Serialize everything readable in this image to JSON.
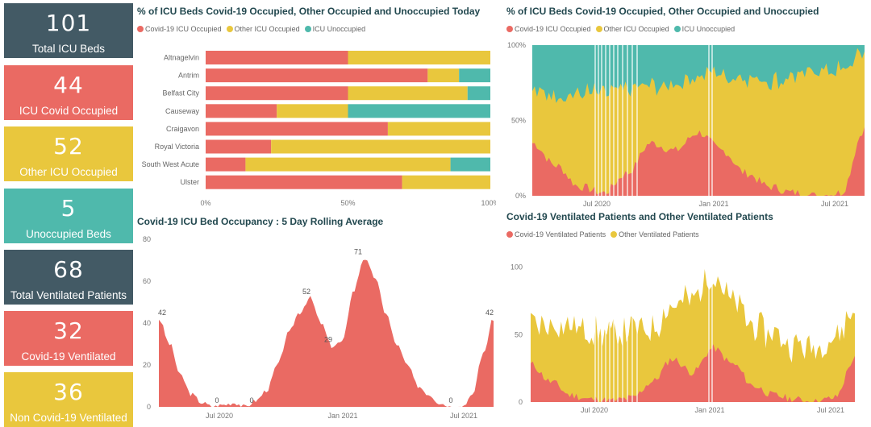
{
  "colors": {
    "covid": "#ea6a63",
    "other": "#e9c73d",
    "unocc": "#4fb9ac",
    "dark": "#435a65"
  },
  "cards": [
    {
      "value": "101",
      "label": "Total ICU Beds",
      "color": "#435a65"
    },
    {
      "value": "44",
      "label": "ICU Covid Occupied",
      "color": "#ea6a63"
    },
    {
      "value": "52",
      "label": "Other ICU Occupied",
      "color": "#e9c73d"
    },
    {
      "value": "5",
      "label": "Unoccupied Beds",
      "color": "#4fb9ac"
    },
    {
      "value": "68",
      "label": "Total Ventilated Patients",
      "color": "#435a65"
    },
    {
      "value": "32",
      "label": "Covid-19 Ventilated",
      "color": "#ea6a63"
    },
    {
      "value": "36",
      "label": "Non Covid-19 Ventilated",
      "color": "#e9c73d"
    }
  ],
  "chart_data": [
    {
      "type": "bar",
      "orientation": "horizontal",
      "stacked": "100%",
      "title": "% of ICU Beds Covid-19 Occupied, Other Occupied and Unoccupied Today",
      "categories": [
        "Altnagelvin",
        "Antrim",
        "Belfast City",
        "Causeway",
        "Craigavon",
        "Royal Victoria",
        "South West Acute",
        "Ulster"
      ],
      "series": [
        {
          "name": "Covid-19 ICU Occupied",
          "values": [
            50,
            78,
            50,
            25,
            64,
            23,
            14,
            69
          ]
        },
        {
          "name": "Other ICU Occupied",
          "values": [
            50,
            11,
            42,
            25,
            36,
            77,
            72,
            31
          ]
        },
        {
          "name": "ICU Unoccupied",
          "values": [
            0,
            11,
            8,
            50,
            0,
            0,
            14,
            0
          ]
        }
      ],
      "x_ticks": [
        "0%",
        "50%",
        "100%"
      ],
      "xlim": [
        0,
        100
      ],
      "legend": "top-left"
    },
    {
      "type": "area",
      "stacked": "100%",
      "title": "% of ICU Beds Covid-19 Occupied, Other Occupied and Unoccupied",
      "x": [
        "2020-03",
        "2020-05",
        "2020-07",
        "2020-09",
        "2020-10",
        "2020-11",
        "2020-12",
        "2021-01",
        "2021-02",
        "2021-03",
        "2021-04",
        "2021-05",
        "2021-06",
        "2021-07",
        "2021-08"
      ],
      "series": [
        {
          "name": "Covid-19 ICU Occupied",
          "values": [
            35,
            20,
            6,
            2,
            15,
            35,
            30,
            42,
            30,
            15,
            6,
            2,
            0,
            2,
            44
          ]
        },
        {
          "name": "Other ICU Occupied",
          "values": [
            35,
            47,
            62,
            66,
            56,
            38,
            44,
            38,
            50,
            64,
            70,
            77,
            83,
            82,
            52
          ]
        },
        {
          "name": "ICU Unoccupied",
          "values": [
            30,
            33,
            32,
            32,
            29,
            27,
            26,
            20,
            20,
            21,
            24,
            21,
            17,
            16,
            4
          ]
        }
      ],
      "y_ticks": [
        "0%",
        "50%",
        "100%"
      ],
      "x_ticks": [
        "Jul 2020",
        "Jan 2021",
        "Jul 2021"
      ],
      "legend": "top-left"
    },
    {
      "type": "area",
      "title": "Covid-19 ICU Bed Occupancy : 5 Day Rolling Average",
      "x": [
        "2020-03-20",
        "2020-04-10",
        "2020-05-01",
        "2020-05-20",
        "2020-06-10",
        "2020-06-25",
        "2020-07-10",
        "2020-08-01",
        "2020-08-20",
        "2020-09-10",
        "2020-09-25",
        "2020-10-10",
        "2020-10-25",
        "2020-11-05",
        "2020-11-20",
        "2020-12-01",
        "2020-12-15",
        "2020-12-28",
        "2021-01-10",
        "2021-01-20",
        "2021-02-01",
        "2021-02-15",
        "2021-03-01",
        "2021-03-20",
        "2021-04-10",
        "2021-05-01",
        "2021-05-20",
        "2021-06-10",
        "2021-06-20",
        "2021-07-01",
        "2021-07-15",
        "2021-08-01"
      ],
      "values": [
        42,
        30,
        15,
        6,
        2,
        0,
        1,
        2,
        0,
        3,
        8,
        20,
        35,
        45,
        52,
        40,
        29,
        31,
        55,
        71,
        62,
        45,
        30,
        20,
        10,
        6,
        2,
        0,
        0,
        5,
        25,
        42
      ],
      "data_labels": [
        {
          "x": "2020-03-20",
          "label": "42"
        },
        {
          "x": "2020-06-25",
          "label": "0"
        },
        {
          "x": "2020-08-20",
          "label": "0"
        },
        {
          "x": "2020-11-20",
          "label": "52"
        },
        {
          "x": "2020-12-15",
          "label": "29"
        },
        {
          "x": "2021-01-20",
          "label": "71"
        },
        {
          "x": "2021-06-10",
          "label": "0"
        },
        {
          "x": "2021-08-01",
          "label": "42"
        }
      ],
      "y_ticks": [
        "0",
        "20",
        "40",
        "60",
        "80"
      ],
      "ylim": [
        0,
        80
      ],
      "x_ticks": [
        "Jul 2020",
        "Jan 2021",
        "Jul 2021"
      ]
    },
    {
      "type": "area",
      "stacked": true,
      "title": "Covid-19 Ventilated Patients and Other Ventilated Patients",
      "x": [
        "2020-04",
        "2020-05",
        "2020-06",
        "2020-07",
        "2020-08",
        "2020-09",
        "2020-10",
        "2020-11",
        "2020-12",
        "2021-01",
        "2021-02",
        "2021-03",
        "2021-04",
        "2021-05",
        "2021-06",
        "2021-07",
        "2021-08"
      ],
      "series": [
        {
          "name": "Covid-19 Ventilated Patients",
          "values": [
            28,
            15,
            5,
            2,
            1,
            3,
            15,
            32,
            22,
            40,
            28,
            12,
            5,
            2,
            0,
            3,
            32
          ]
        },
        {
          "name": "Other Ventilated Patients",
          "values": [
            30,
            42,
            52,
            50,
            48,
            50,
            40,
            40,
            55,
            55,
            45,
            45,
            45,
            40,
            40,
            45,
            36
          ]
        }
      ],
      "y_ticks": [
        "0",
        "50",
        "100"
      ],
      "ylim": [
        0,
        110
      ],
      "x_ticks": [
        "Jul 2020",
        "Jan 2021",
        "Jul 2021"
      ],
      "legend": "top-left"
    }
  ]
}
